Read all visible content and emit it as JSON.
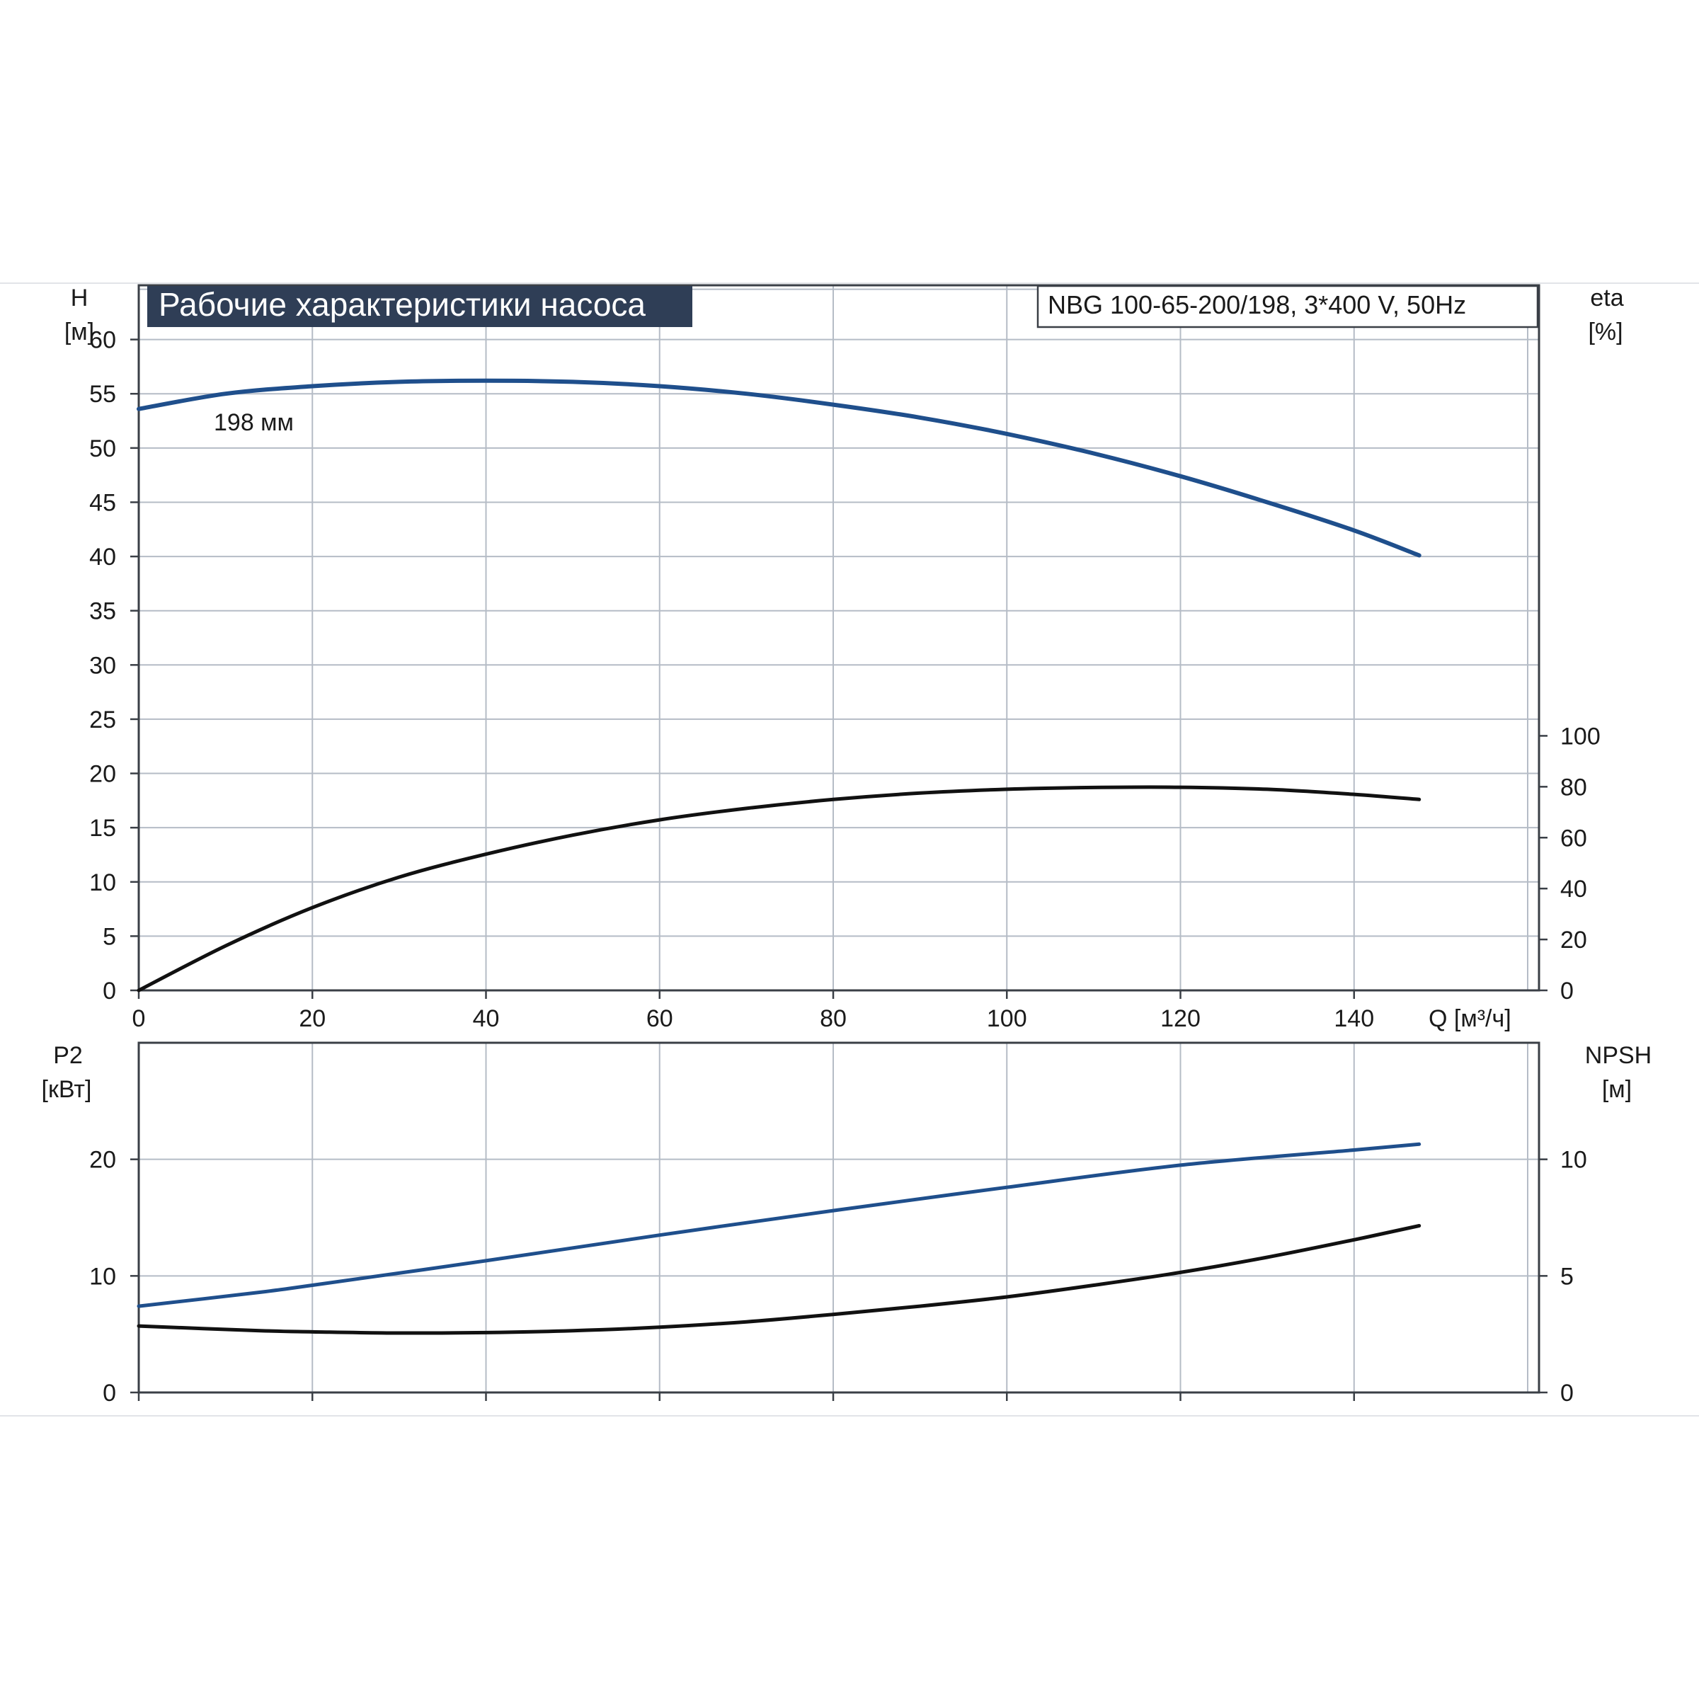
{
  "title": "Рабочие характеристики насоса",
  "model_label": "NBG 100-65-200/198, 3*400 V, 50Hz",
  "colors": {
    "title_bg": "#2f3e56",
    "title_fg": "#ffffff",
    "blue": "#1f4f8c",
    "black": "#111111",
    "grid": "#b5bcc6"
  },
  "chart_data": [
    {
      "type": "line",
      "name": "upper",
      "x_ticks": [
        0,
        20,
        40,
        60,
        80,
        100,
        120,
        140
      ],
      "x_unit_label": "Q [м³/ч]",
      "xlim": [
        0,
        160
      ],
      "left_axis": {
        "label": "H",
        "unit": "[м]",
        "ticks": [
          0,
          5,
          10,
          15,
          20,
          25,
          30,
          35,
          40,
          45,
          50,
          55,
          60
        ],
        "ylim": [
          0,
          65
        ]
      },
      "right_axis": {
        "label": "eta",
        "unit": "[%]",
        "ticks": [
          0,
          20,
          40,
          60,
          80,
          100
        ],
        "ylim": [
          0,
          277
        ]
      },
      "curve_label": "198 мм",
      "grid": true,
      "series": [
        {
          "axis": "left",
          "color": "blue",
          "x": [
            0,
            10,
            20,
            30,
            40,
            50,
            60,
            70,
            80,
            90,
            100,
            110,
            120,
            130,
            140,
            147.5
          ],
          "y": [
            53.6,
            55.0,
            55.7,
            56.1,
            56.2,
            56.1,
            55.7,
            55.0,
            54.0,
            52.8,
            51.3,
            49.5,
            47.4,
            45.0,
            42.4,
            40.1
          ]
        },
        {
          "axis": "right",
          "color": "black",
          "x": [
            0,
            10,
            20,
            30,
            40,
            50,
            60,
            70,
            80,
            90,
            100,
            110,
            120,
            130,
            140,
            147.5
          ],
          "y": [
            0,
            17.5,
            32.5,
            44.5,
            53.5,
            61.0,
            67.0,
            71.5,
            75.0,
            77.5,
            79.0,
            79.7,
            79.8,
            79.0,
            77.0,
            75.0
          ]
        }
      ]
    },
    {
      "type": "line",
      "name": "lower",
      "x_ticks": [
        0,
        20,
        40,
        60,
        80,
        100,
        120,
        140
      ],
      "xlim": [
        0,
        160
      ],
      "left_axis": {
        "label": "P2",
        "unit": "[кВт]",
        "ticks": [
          0,
          10,
          20
        ],
        "ylim": [
          0,
          30
        ]
      },
      "right_axis": {
        "label": "NPSH",
        "unit": "[м]",
        "ticks": [
          0,
          5,
          10
        ],
        "ylim": [
          0,
          15
        ]
      },
      "grid": true,
      "series": [
        {
          "axis": "left",
          "color": "blue",
          "x": [
            0,
            14,
            20,
            40,
            60,
            80,
            100,
            120,
            140,
            147.5
          ],
          "y": [
            7.4,
            8.6,
            9.2,
            11.3,
            13.5,
            15.6,
            17.6,
            19.5,
            20.8,
            21.3
          ]
        },
        {
          "axis": "right",
          "color": "black",
          "x": [
            0,
            14,
            20,
            30,
            40,
            50,
            60,
            70,
            80,
            90,
            100,
            110,
            120,
            130,
            140,
            147.5
          ],
          "y": [
            2.85,
            2.65,
            2.6,
            2.55,
            2.57,
            2.65,
            2.8,
            3.03,
            3.35,
            3.7,
            4.1,
            4.6,
            5.15,
            5.8,
            6.55,
            7.15
          ]
        }
      ]
    }
  ]
}
